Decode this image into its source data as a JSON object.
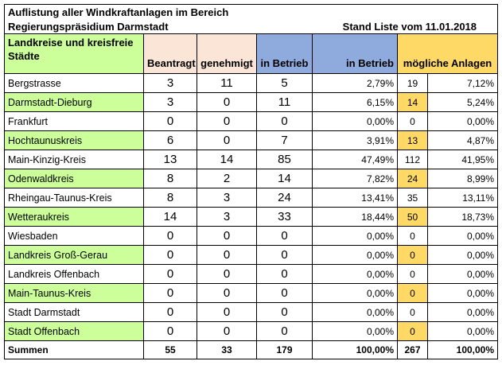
{
  "title": {
    "line1": "Auflistung aller Windkraftanlagen im Bereich",
    "line2": "Regierungspräsidium Darmstadt",
    "stand": "Stand Liste vom 11.01.2018"
  },
  "headers": {
    "name": "Landkreise und kreisfreie Städte",
    "beantragt": "Beantragt",
    "genehmigt": "genehmigt",
    "in_betrieb": "in Betrieb",
    "in_betrieb_pct": "in Betrieb",
    "moegliche": "mögliche Anlagen"
  },
  "colors": {
    "green": "#ccff99",
    "salmon": "#fbe5d6",
    "blue": "#8faadc",
    "gold": "#ffd966"
  },
  "rows": [
    {
      "name": "Bergstrasse",
      "beantragt": "3",
      "genehmigt": "11",
      "in_betrieb": "5",
      "in_betrieb_pct": "2,79%",
      "moegliche": "19",
      "moegliche_pct": "7,12%"
    },
    {
      "name": "Darmstadt-Dieburg",
      "beantragt": "3",
      "genehmigt": "0",
      "in_betrieb": "11",
      "in_betrieb_pct": "6,15%",
      "moegliche": "14",
      "moegliche_pct": "5,24%"
    },
    {
      "name": "Frankfurt",
      "beantragt": "0",
      "genehmigt": "0",
      "in_betrieb": "0",
      "in_betrieb_pct": "0,00%",
      "moegliche": "0",
      "moegliche_pct": "0,00%"
    },
    {
      "name": "Hochtaunuskreis",
      "beantragt": "6",
      "genehmigt": "0",
      "in_betrieb": "7",
      "in_betrieb_pct": "3,91%",
      "moegliche": "13",
      "moegliche_pct": "4,87%"
    },
    {
      "name": "Main-Kinzig-Kreis",
      "beantragt": "13",
      "genehmigt": "14",
      "in_betrieb": "85",
      "in_betrieb_pct": "47,49%",
      "moegliche": "112",
      "moegliche_pct": "41,95%"
    },
    {
      "name": "Odenwaldkreis",
      "beantragt": "8",
      "genehmigt": "2",
      "in_betrieb": "14",
      "in_betrieb_pct": "7,82%",
      "moegliche": "24",
      "moegliche_pct": "8,99%"
    },
    {
      "name": "Rheingau-Taunus-Kreis",
      "beantragt": "8",
      "genehmigt": "3",
      "in_betrieb": "24",
      "in_betrieb_pct": "13,41%",
      "moegliche": "35",
      "moegliche_pct": "13,11%"
    },
    {
      "name": "Wetteraukreis",
      "beantragt": "14",
      "genehmigt": "3",
      "in_betrieb": "33",
      "in_betrieb_pct": "18,44%",
      "moegliche": "50",
      "moegliche_pct": "18,73%"
    },
    {
      "name": "Wiesbaden",
      "beantragt": "0",
      "genehmigt": "0",
      "in_betrieb": "0",
      "in_betrieb_pct": "0,00%",
      "moegliche": "0",
      "moegliche_pct": "0,00%"
    },
    {
      "name": "Landkreis Groß-Gerau",
      "beantragt": "0",
      "genehmigt": "0",
      "in_betrieb": "0",
      "in_betrieb_pct": "0,00%",
      "moegliche": "0",
      "moegliche_pct": "0,00%"
    },
    {
      "name": "Landkreis Offenbach",
      "beantragt": "0",
      "genehmigt": "0",
      "in_betrieb": "0",
      "in_betrieb_pct": "0,00%",
      "moegliche": "0",
      "moegliche_pct": "0,00%"
    },
    {
      "name": "Main-Taunus-Kreis",
      "beantragt": "0",
      "genehmigt": "0",
      "in_betrieb": "0",
      "in_betrieb_pct": "0,00%",
      "moegliche": "0",
      "moegliche_pct": "0,00%"
    },
    {
      "name": "Stadt Darmstadt",
      "beantragt": "0",
      "genehmigt": "0",
      "in_betrieb": "0",
      "in_betrieb_pct": "0,00%",
      "moegliche": "0",
      "moegliche_pct": "0,00%"
    },
    {
      "name": "Stadt Offenbach",
      "beantragt": "0",
      "genehmigt": "0",
      "in_betrieb": "0",
      "in_betrieb_pct": "0,00%",
      "moegliche": "0",
      "moegliche_pct": "0,00%"
    }
  ],
  "sum": {
    "label": "Summen",
    "beantragt": "55",
    "genehmigt": "33",
    "in_betrieb": "179",
    "in_betrieb_pct": "100,00%",
    "moegliche": "267",
    "moegliche_pct": "100,00%"
  }
}
